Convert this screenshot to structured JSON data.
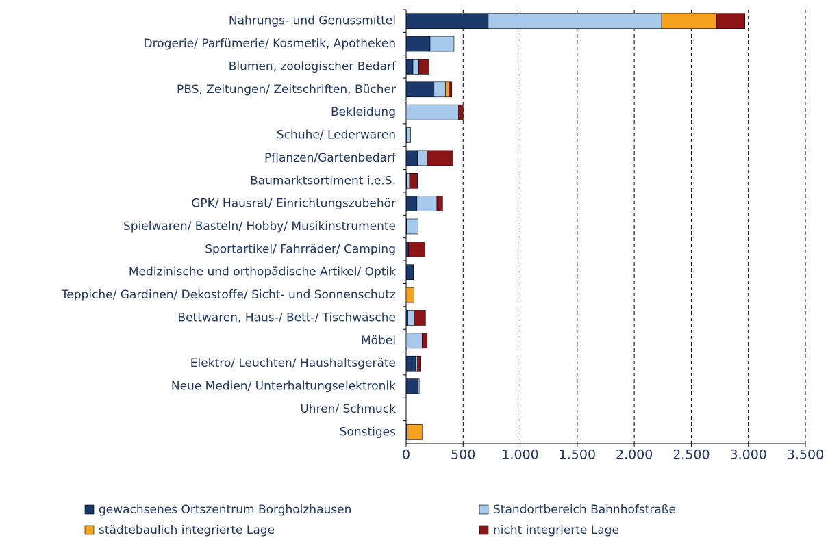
{
  "chart_data": {
    "type": "stacked_barh",
    "categories": [
      "Nahrungs- und Genussmittel",
      "Drogerie/ Parfümerie/ Kosmetik, Apotheken",
      "Blumen, zoologischer Bedarf",
      "PBS, Zeitungen/ Zeitschriften, Bücher",
      "Bekleidung",
      "Schuhe/ Lederwaren",
      "Pflanzen/Gartenbedarf",
      "Baumarktsortiment i.e.S.",
      "GPK/ Hausrat/ Einrichtungszubehör",
      "Spielwaren/ Basteln/ Hobby/ Musikinstrumente",
      "Sportartikel/ Fahrräder/ Camping",
      "Medizinische und orthopädische Artikel/ Optik",
      "Teppiche/ Gardinen/ Dekostoffe/ Sicht- und Sonnenschutz",
      "Bettwaren, Haus-/ Bett-/ Tischwäsche",
      "Möbel",
      "Elektro/ Leuchten/ Haushaltsgeräte",
      "Neue Medien/ Unterhaltungselektronik",
      "Uhren/ Schmuck",
      "Sonstiges"
    ],
    "series": [
      {
        "name": "gewachsenes Ortszentrum Borgholzhausen",
        "color": "#1b3a6b",
        "values": [
          720,
          210,
          60,
          245,
          0,
          10,
          100,
          5,
          95,
          5,
          20,
          65,
          0,
          15,
          0,
          85,
          105,
          0,
          10
        ]
      },
      {
        "name": "Standortbereich Bahnhofstraße",
        "color": "#a7c9ec",
        "values": [
          1520,
          210,
          50,
          100,
          460,
          30,
          85,
          25,
          175,
          100,
          0,
          0,
          0,
          55,
          140,
          15,
          10,
          0,
          0
        ]
      },
      {
        "name": "städtebaulich integrierte Lage",
        "color": "#f5a31e",
        "values": [
          480,
          0,
          0,
          30,
          0,
          0,
          0,
          0,
          0,
          0,
          0,
          0,
          70,
          0,
          0,
          0,
          0,
          0,
          130
        ]
      },
      {
        "name": "nicht integrierte Lage",
        "color": "#8b1416",
        "values": [
          250,
          0,
          90,
          25,
          40,
          0,
          225,
          70,
          50,
          0,
          145,
          0,
          0,
          100,
          45,
          25,
          0,
          0,
          0
        ]
      }
    ],
    "xlim": [
      0,
      3500
    ],
    "xticks": [
      0,
      500,
      {
        "value": 1000,
        "label": "1.000"
      },
      {
        "value": 1500,
        "label": "1.500"
      },
      {
        "value": 2000,
        "label": "2.000"
      },
      {
        "value": 2500,
        "label": "2.500"
      },
      {
        "value": 3000,
        "label": "3.000"
      },
      {
        "value": 3500,
        "label": "3.500"
      }
    ],
    "grid": true,
    "legend": "bottom"
  }
}
